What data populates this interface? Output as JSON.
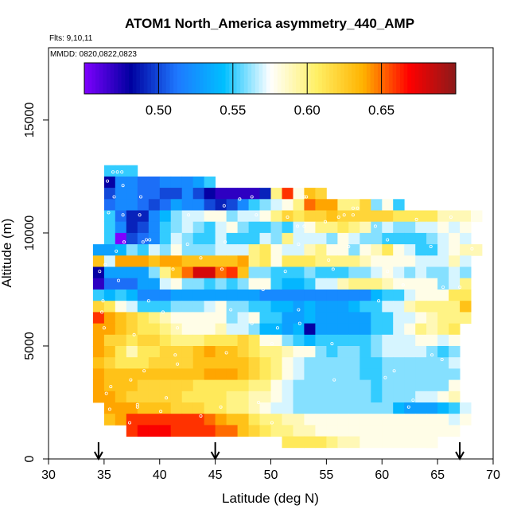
{
  "chart_data": {
    "type": "heatmap",
    "title": "ATOM1 North_America asymmetry_440_AMP",
    "flights_label": "Flts: 9,10,11",
    "dates_label": "MMDD: 0820,0822,0823",
    "xlabel": "Latitude (deg N)",
    "ylabel": "Altitude (m)",
    "xlim": [
      30,
      70
    ],
    "ylim": [
      0,
      17500
    ],
    "x_ticks": [
      "30",
      "35",
      "40",
      "45",
      "50",
      "55",
      "60",
      "65",
      "70"
    ],
    "y_ticks": [
      "0",
      "5000",
      "10000",
      "15000"
    ],
    "colorbar": {
      "range": [
        0.45,
        0.7
      ],
      "ticks": [
        "0.50",
        "0.55",
        "0.60",
        "0.65"
      ],
      "colors": [
        "#7f00ff",
        "#0000a0",
        "#1e78ff",
        "#00bfff",
        "#ffffff",
        "#fff066",
        "#ffb300",
        "#ff0000",
        "#8b1a1a"
      ]
    },
    "profile_arrows_lat": [
      34.5,
      45,
      67
    ],
    "grid": false,
    "legend": "colorbar top",
    "cell_size": {
      "lat_deg": 1,
      "alt_m": 500
    },
    "rows": [
      {
        "alt": 12750,
        "lat0": 35,
        "values": [
          0.55,
          0.55,
          0.55
        ]
      },
      {
        "alt": 12250,
        "lat0": 35,
        "values": [
          0.48,
          0.52,
          0.52,
          0.51,
          0.51,
          0.52,
          0.52,
          0.52,
          0.53,
          0.55
        ]
      },
      {
        "alt": 11750,
        "lat0": 35,
        "values": [
          0.5,
          0.52,
          0.52,
          0.51,
          0.51,
          0.5,
          0.5,
          0.52,
          0.5,
          0.48,
          0.47,
          0.47,
          0.47,
          0.47,
          0.49,
          0.6,
          0.66,
          0.58,
          0.63,
          0.62
        ]
      },
      {
        "alt": 11250,
        "lat0": 35,
        "values": [
          0.51,
          0.52,
          0.52,
          0.51,
          0.5,
          0.51,
          0.53,
          0.52,
          0.52,
          0.5,
          0.49,
          0.5,
          0.52,
          0.55,
          0.56,
          0.57,
          0.58,
          0.6,
          0.65,
          0.64,
          0.64,
          0.6,
          0.6,
          0.62,
          0.56,
          0.58,
          0.55
        ]
      },
      {
        "alt": 10750,
        "lat0": 35,
        "values": [
          0.55,
          0.51,
          0.49,
          0.49,
          0.52,
          0.54,
          0.56,
          0.57,
          0.57,
          0.58,
          0.58,
          0.56,
          0.57,
          0.57,
          0.58,
          0.6,
          0.62,
          0.61,
          0.62,
          0.62,
          0.63,
          0.62,
          0.62,
          0.62,
          0.62,
          0.62,
          0.61,
          0.61,
          0.61,
          0.61,
          0.59,
          0.59,
          0.59,
          0.58
        ]
      },
      {
        "alt": 10250,
        "lat0": 35,
        "values": [
          0.55,
          0.52,
          0.49,
          0.5,
          0.52,
          0.55,
          0.56,
          0.57,
          0.56,
          0.55,
          0.57,
          0.58,
          0.56,
          0.55,
          0.55,
          0.56,
          0.55,
          0.57,
          0.58,
          0.6,
          0.6,
          0.61,
          0.6,
          0.59,
          0.56,
          0.57,
          0.56,
          0.56,
          0.57,
          0.57,
          0.58,
          0.57,
          0.58
        ]
      },
      {
        "alt": 9750,
        "lat0": 35,
        "values": [
          0.55,
          0.45,
          0.5,
          0.51,
          0.52,
          0.55,
          0.57,
          0.56,
          0.55,
          0.55,
          0.57,
          0.55,
          0.55,
          0.55,
          0.57,
          0.56,
          0.6,
          0.57,
          0.57,
          0.57,
          0.56,
          0.58,
          0.57,
          0.56,
          0.56,
          0.55,
          0.55,
          0.55,
          0.55,
          0.56,
          0.57,
          0.58,
          0.57
        ]
      },
      {
        "alt": 9250,
        "lat0": 34,
        "values": [
          0.53,
          0.53,
          0.54,
          0.56,
          0.55,
          0.57,
          0.56,
          0.58,
          0.56,
          0.56,
          0.56,
          0.57,
          0.57,
          0.57,
          0.6,
          0.61,
          0.58,
          0.57,
          0.57,
          0.59,
          0.6,
          0.58,
          0.58,
          0.56,
          0.58,
          0.59,
          0.61,
          0.58,
          0.57,
          0.55,
          0.55,
          0.57,
          0.58,
          0.59,
          0.59
        ]
      },
      {
        "alt": 8750,
        "lat0": 34,
        "values": [
          0.63,
          0.57,
          0.64,
          0.64,
          0.64,
          0.63,
          0.64,
          0.64,
          0.63,
          0.63,
          0.63,
          0.63,
          0.63,
          0.64,
          0.6,
          0.61,
          0.58,
          0.61,
          0.61,
          0.61,
          0.6,
          0.6,
          0.6,
          0.6,
          0.59,
          0.58,
          0.58,
          0.58,
          0.58,
          0.57,
          0.57,
          0.57,
          0.59,
          0.57
        ]
      },
      {
        "alt": 8250,
        "lat0": 34,
        "values": [
          0.48,
          0.53,
          0.53,
          0.53,
          0.53,
          0.56,
          0.6,
          0.63,
          0.65,
          0.68,
          0.68,
          0.65,
          0.66,
          0.63,
          0.56,
          0.56,
          0.55,
          0.55,
          0.55,
          0.56,
          0.55,
          0.55,
          0.55,
          0.56,
          0.56,
          0.57,
          0.58,
          0.57,
          0.56,
          0.57,
          0.56,
          0.56,
          0.57,
          0.56
        ]
      },
      {
        "alt": 7750,
        "lat0": 34,
        "values": [
          0.47,
          0.51,
          0.51,
          0.51,
          0.53,
          0.53,
          0.57,
          0.58,
          0.56,
          0.56,
          0.55,
          0.56,
          0.55,
          0.56,
          0.58,
          0.58,
          0.55,
          0.54,
          0.54,
          0.55,
          0.57,
          0.57,
          0.59,
          0.6,
          0.6,
          0.6,
          0.59,
          0.58,
          0.58,
          0.58,
          0.58,
          0.56,
          0.57,
          0.6
        ]
      },
      {
        "alt": 7250,
        "lat0": 34,
        "values": [
          0.55,
          0.54,
          0.55,
          0.54,
          0.52,
          0.52,
          0.52,
          0.53,
          0.53,
          0.53,
          0.53,
          0.53,
          0.53,
          0.53,
          0.53,
          0.52,
          0.52,
          0.52,
          0.52,
          0.52,
          0.52,
          0.52,
          0.52,
          0.52,
          0.52,
          0.54,
          0.55,
          0.55,
          0.57,
          0.58,
          0.58,
          0.58,
          0.61,
          0.61
        ]
      },
      {
        "alt": 6750,
        "lat0": 34,
        "values": [
          0.62,
          0.61,
          0.58,
          0.57,
          0.55,
          0.55,
          0.55,
          0.56,
          0.56,
          0.56,
          0.57,
          0.58,
          0.56,
          0.56,
          0.55,
          0.55,
          0.54,
          0.54,
          0.53,
          0.54,
          0.53,
          0.53,
          0.53,
          0.54,
          0.55,
          0.55,
          0.57,
          0.57,
          0.59,
          0.6,
          0.6,
          0.6,
          0.6,
          0.63
        ]
      },
      {
        "alt": 6250,
        "lat0": 34,
        "values": [
          0.66,
          0.64,
          0.63,
          0.62,
          0.61,
          0.6,
          0.59,
          0.58,
          0.58,
          0.58,
          0.58,
          0.58,
          0.56,
          0.57,
          0.58,
          0.55,
          0.55,
          0.53,
          0.53,
          0.54,
          0.53,
          0.53,
          0.53,
          0.53,
          0.53,
          0.55,
          0.55,
          0.57,
          0.57,
          0.58,
          0.59,
          0.6,
          0.6,
          0.6
        ]
      },
      {
        "alt": 5750,
        "lat0": 34,
        "values": [
          0.64,
          0.64,
          0.63,
          0.62,
          0.61,
          0.61,
          0.6,
          0.59,
          0.58,
          0.58,
          0.58,
          0.59,
          0.57,
          0.57,
          0.56,
          0.54,
          0.54,
          0.53,
          0.54,
          0.48,
          0.53,
          0.53,
          0.53,
          0.53,
          0.53,
          0.55,
          0.55,
          0.57,
          0.58,
          0.6,
          0.59,
          0.6,
          0.61
        ]
      },
      {
        "alt": 5250,
        "lat0": 34,
        "values": [
          0.64,
          0.62,
          0.62,
          0.61,
          0.62,
          0.62,
          0.61,
          0.6,
          0.6,
          0.6,
          0.61,
          0.61,
          0.61,
          0.62,
          0.61,
          0.58,
          0.58,
          0.56,
          0.55,
          0.54,
          0.55,
          0.55,
          0.55,
          0.55,
          0.55,
          0.56,
          0.57,
          0.57,
          0.57,
          0.58,
          0.58,
          0.57,
          0.58
        ]
      },
      {
        "alt": 4750,
        "lat0": 34,
        "values": [
          0.64,
          0.63,
          0.61,
          0.59,
          0.61,
          0.61,
          0.62,
          0.62,
          0.62,
          0.63,
          0.64,
          0.63,
          0.63,
          0.62,
          0.61,
          0.6,
          0.6,
          0.59,
          0.58,
          0.58,
          0.56,
          0.55,
          0.56,
          0.56,
          0.55,
          0.56,
          0.57,
          0.57,
          0.57,
          0.57,
          0.56,
          0.55,
          0.56
        ]
      },
      {
        "alt": 4250,
        "lat0": 34,
        "values": [
          0.63,
          0.62,
          0.61,
          0.61,
          0.61,
          0.62,
          0.62,
          0.62,
          0.62,
          0.63,
          0.63,
          0.63,
          0.63,
          0.63,
          0.62,
          0.61,
          0.6,
          0.58,
          0.57,
          0.56,
          0.56,
          0.56,
          0.56,
          0.56,
          0.55,
          0.55,
          0.56,
          0.56,
          0.56,
          0.56,
          0.56,
          0.56,
          0.57
        ]
      },
      {
        "alt": 3750,
        "lat0": 34,
        "values": [
          0.64,
          0.63,
          0.63,
          0.63,
          0.63,
          0.63,
          0.63,
          0.63,
          0.63,
          0.63,
          0.64,
          0.64,
          0.64,
          0.63,
          0.62,
          0.61,
          0.6,
          0.58,
          0.57,
          0.56,
          0.56,
          0.56,
          0.56,
          0.56,
          0.55,
          0.55,
          0.56,
          0.56,
          0.56,
          0.56,
          0.56,
          0.56,
          0.56
        ]
      },
      {
        "alt": 3250,
        "lat0": 34,
        "values": [
          0.64,
          0.63,
          0.63,
          0.63,
          0.62,
          0.62,
          0.62,
          0.62,
          0.62,
          0.61,
          0.61,
          0.61,
          0.61,
          0.61,
          0.6,
          0.6,
          0.58,
          0.57,
          0.56,
          0.56,
          0.56,
          0.56,
          0.56,
          0.56,
          0.56,
          0.55,
          0.56,
          0.56,
          0.56,
          0.56,
          0.56,
          0.56,
          0.58
        ]
      },
      {
        "alt": 2750,
        "lat0": 34,
        "values": [
          0.64,
          0.64,
          0.63,
          0.62,
          0.62,
          0.62,
          0.62,
          0.62,
          0.61,
          0.61,
          0.61,
          0.61,
          0.6,
          0.6,
          0.59,
          0.59,
          0.58,
          0.57,
          0.56,
          0.56,
          0.56,
          0.56,
          0.56,
          0.56,
          0.56,
          0.55,
          0.56,
          0.56,
          0.56,
          0.57,
          0.57,
          0.58,
          0.59
        ]
      },
      {
        "alt": 2250,
        "lat0": 35,
        "values": [
          0.64,
          0.64,
          0.64,
          0.63,
          0.63,
          0.63,
          0.62,
          0.62,
          0.62,
          0.61,
          0.61,
          0.6,
          0.6,
          0.59,
          0.58,
          0.57,
          0.57,
          0.56,
          0.56,
          0.56,
          0.56,
          0.56,
          0.56,
          0.56,
          0.56,
          0.56,
          0.54,
          0.53,
          0.53,
          0.53,
          0.54,
          0.55,
          0.57
        ]
      },
      {
        "alt": 1750,
        "lat0": 35,
        "values": [
          0.63,
          0.64,
          0.66,
          0.66,
          0.66,
          0.66,
          0.66,
          0.66,
          0.66,
          0.65,
          0.64,
          0.63,
          0.63,
          0.61,
          0.6,
          0.6,
          0.59,
          0.59,
          0.58,
          0.58,
          0.58,
          0.58,
          0.58,
          0.58,
          0.58,
          0.58,
          0.58,
          0.58,
          0.58,
          0.58,
          0.58,
          0.57,
          0.58
        ]
      },
      {
        "alt": 1250,
        "lat0": 37,
        "values": [
          0.66,
          0.67,
          0.67,
          0.67,
          0.66,
          0.66,
          0.66,
          0.66,
          0.65,
          0.65,
          0.63,
          0.62,
          0.61,
          0.6,
          0.6,
          0.59,
          0.59,
          0.58,
          0.58,
          0.58,
          0.58,
          0.58,
          0.58,
          0.58,
          0.58,
          0.58,
          0.58,
          0.58,
          0.58,
          0.58
        ]
      },
      {
        "alt": 750,
        "lat0": 51,
        "values": [
          0.61,
          0.61,
          0.61,
          0.61,
          0.6,
          0.59,
          0.59,
          0.58,
          0.58,
          0.58,
          0.58,
          0.58,
          0.58,
          0.58
        ]
      },
      {
        "alt": 750,
        "lat0": 64,
        "values": [
          0.58
        ]
      }
    ],
    "sample_points": [
      [
        35.8,
        12.7
      ],
      [
        36.2,
        12.7
      ],
      [
        36.6,
        12.7
      ],
      [
        35.3,
        12.3
      ],
      [
        36.7,
        12.1
      ],
      [
        35.9,
        11.6
      ],
      [
        38.3,
        11.6
      ],
      [
        45.8,
        11.2
      ],
      [
        47.2,
        11.5
      ],
      [
        48.3,
        11.6
      ],
      [
        53.0,
        11.6
      ],
      [
        53.2,
        11.6
      ],
      [
        57.4,
        11.1
      ],
      [
        57.8,
        11.1
      ],
      [
        35.4,
        10.9
      ],
      [
        36.7,
        10.8
      ],
      [
        38.2,
        10.8
      ],
      [
        42.6,
        10.8
      ],
      [
        48.7,
        10.8
      ],
      [
        51.5,
        10.7
      ],
      [
        56.1,
        10.7
      ],
      [
        56.6,
        10.8
      ],
      [
        57.4,
        10.8
      ],
      [
        66.2,
        10.7
      ],
      [
        52.4,
        10.3
      ],
      [
        53.0,
        10.3
      ],
      [
        54.9,
        10.5
      ],
      [
        59.4,
        10.3
      ],
      [
        63.1,
        10.6
      ],
      [
        36.8,
        9.6
      ],
      [
        38.5,
        9.6
      ],
      [
        38.8,
        9.7
      ],
      [
        39.1,
        9.7
      ],
      [
        42.5,
        9.5
      ],
      [
        45.9,
        9.6
      ],
      [
        52.5,
        9.5
      ],
      [
        57.0,
        9.4
      ],
      [
        60.5,
        9.7
      ],
      [
        64.4,
        9.4
      ],
      [
        68.1,
        9.3
      ],
      [
        36.1,
        9.2
      ],
      [
        43.7,
        8.9
      ],
      [
        55.2,
        8.8
      ],
      [
        35.1,
        8.6
      ],
      [
        34.6,
        8.3
      ],
      [
        41.2,
        8.4
      ],
      [
        45.6,
        8.4
      ],
      [
        51.3,
        8.3
      ],
      [
        55.6,
        8.4
      ],
      [
        60.5,
        8.3
      ],
      [
        36.3,
        7.9
      ],
      [
        61.9,
        7.7
      ],
      [
        65.5,
        7.6
      ],
      [
        67.0,
        7.6
      ],
      [
        49.3,
        7.5
      ],
      [
        34.9,
        7.0
      ],
      [
        39.0,
        7.0
      ],
      [
        59.7,
        7.0
      ],
      [
        34.8,
        6.5
      ],
      [
        40.3,
        6.5
      ],
      [
        46.4,
        6.6
      ],
      [
        52.5,
        6.6
      ],
      [
        48.3,
        6.0
      ],
      [
        52.6,
        6.0
      ],
      [
        35.0,
        5.8
      ],
      [
        41.6,
        5.8
      ],
      [
        50.6,
        5.8
      ],
      [
        37.7,
        5.5
      ],
      [
        55.5,
        5.1
      ],
      [
        50.1,
        5.1
      ],
      [
        46.0,
        4.7
      ],
      [
        41.4,
        4.6
      ],
      [
        64.5,
        4.6
      ],
      [
        65.4,
        4.4
      ],
      [
        41.6,
        4.2
      ],
      [
        38.6,
        3.9
      ],
      [
        61.1,
        3.9
      ],
      [
        60.3,
        3.6
      ],
      [
        37.4,
        3.5
      ],
      [
        55.7,
        3.5
      ],
      [
        35.6,
        3.2
      ],
      [
        35.2,
        2.9
      ],
      [
        40.6,
        2.7
      ],
      [
        38.0,
        2.4
      ],
      [
        48.9,
        2.5
      ],
      [
        62.8,
        2.6
      ],
      [
        62.4,
        2.3
      ],
      [
        40.1,
        2.1
      ],
      [
        43.7,
        1.9
      ],
      [
        35.5,
        2.2
      ],
      [
        50.1,
        1.6
      ],
      [
        38.0,
        2.3
      ],
      [
        45.5,
        2.3
      ],
      [
        37.3,
        1.6
      ]
    ]
  }
}
